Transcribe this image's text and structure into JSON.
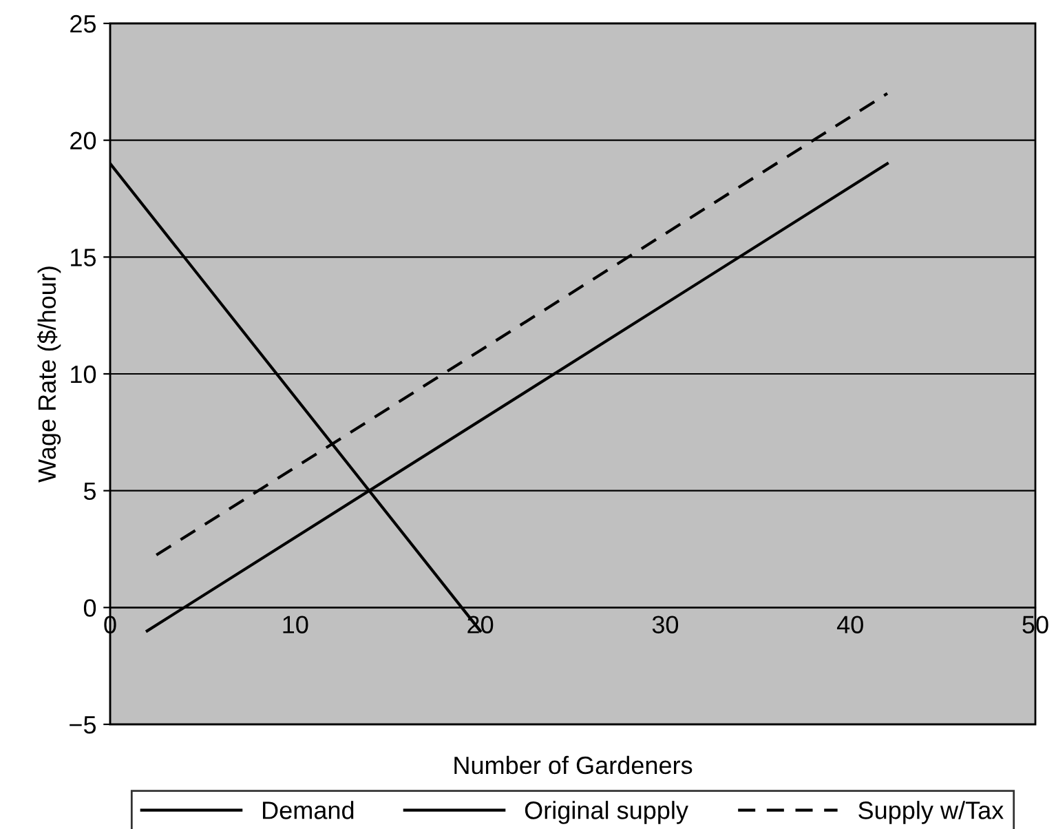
{
  "chart_data": {
    "type": "line",
    "xlabel": "Number of Gardeners",
    "ylabel": "Wage Rate ($/hour)",
    "xlim": [
      0,
      50
    ],
    "xticks": [
      0,
      10,
      20,
      30,
      40,
      50
    ],
    "ylim": [
      -5,
      25
    ],
    "yticks": [
      -5,
      0,
      5,
      10,
      15,
      20,
      25
    ],
    "grid": "y",
    "legend": "bottom",
    "marker": "none",
    "series": [
      {
        "name": "Demand",
        "color": "#000000",
        "x": [
          0,
          20
        ],
        "values": [
          19,
          -1
        ],
        "line_style": "solid"
      },
      {
        "name": "Original supply",
        "color": "#000000",
        "x": [
          2,
          42
        ],
        "values": [
          -1,
          19
        ],
        "line_style": "solid"
      },
      {
        "name": "Supply w/Tax",
        "color": "#000000",
        "x": [
          2.5,
          42
        ],
        "values": [
          2.25,
          22
        ],
        "line_style": "dashed"
      }
    ]
  }
}
